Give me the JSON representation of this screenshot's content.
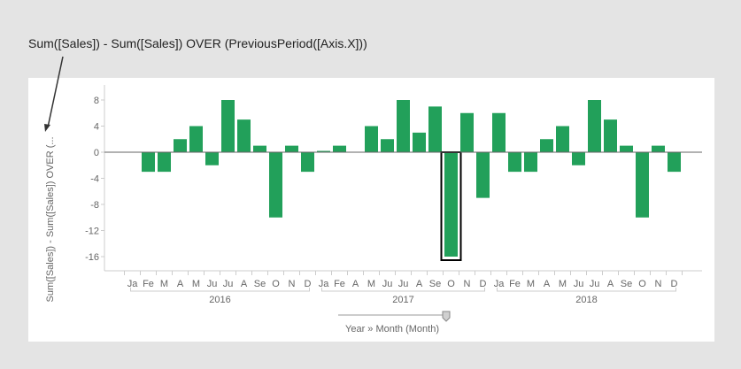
{
  "annotation": "Sum([Sales]) - Sum([Sales]) OVER (PreviousPeriod([Axis.X]))",
  "chart_data": {
    "type": "bar",
    "ylabel": "Sum([Sales]) - Sum([Sales]) OVER (...",
    "xlabel": "Year » Month (Month)",
    "ylim": [
      -18,
      10
    ],
    "yticks": [
      8,
      4,
      0,
      -4,
      -8,
      -12,
      -16
    ],
    "grid": false,
    "bar_color": "#22a05a",
    "highlight_color": "#000000",
    "groups": [
      {
        "year": "2016",
        "months": [
          "Ja",
          "Fe",
          "M",
          "A",
          "M",
          "Ju",
          "Ju",
          "A",
          "Se",
          "O",
          "N",
          "D"
        ],
        "values": [
          0,
          -3,
          -3,
          2,
          4,
          -2,
          8,
          5,
          1,
          -10,
          1,
          -3
        ]
      },
      {
        "year": "2017",
        "months": [
          "Ja",
          "Fe",
          "A",
          "M",
          "Ju",
          "Ju",
          "A",
          "Se",
          "O",
          "N",
          "D"
        ],
        "values": [
          0.2,
          1,
          0,
          4,
          2,
          8,
          3,
          7,
          -16,
          6,
          -7
        ]
      },
      {
        "year": "2018",
        "months": [
          "Ja",
          "Fe",
          "M",
          "A",
          "M",
          "Ju",
          "Ju",
          "A",
          "Se",
          "O",
          "N",
          "D"
        ],
        "values": [
          6,
          -3,
          -3,
          2,
          4,
          -2,
          8,
          5,
          1,
          -10,
          1,
          -3
        ]
      }
    ],
    "highlighted": {
      "year": "2017",
      "month": "O"
    }
  }
}
